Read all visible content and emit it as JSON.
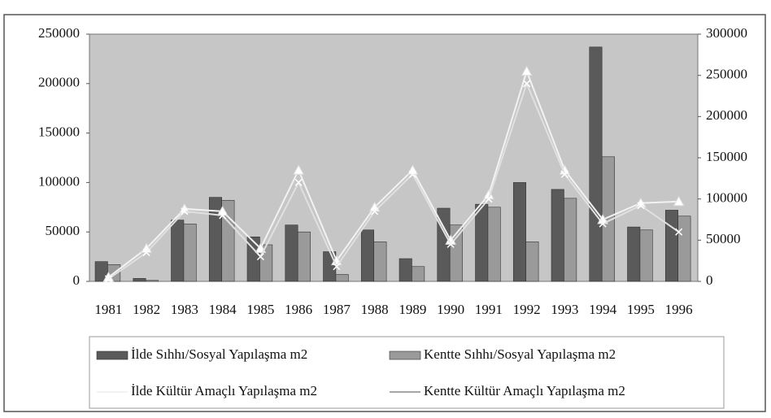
{
  "chart_data": {
    "type": "bar_line",
    "categories": [
      "1981",
      "1982",
      "1983",
      "1984",
      "1985",
      "1986",
      "1987",
      "1988",
      "1989",
      "1990",
      "1991",
      "1992",
      "1993",
      "1994",
      "1995",
      "1996"
    ],
    "series": [
      {
        "name": "İlde Sıhhı/Sosyal Yapılaşma m2",
        "type": "bar",
        "color": "#5a5a5a",
        "values": [
          20000,
          3000,
          62000,
          85000,
          45000,
          57000,
          30000,
          52000,
          23000,
          74000,
          78000,
          100000,
          93000,
          237000,
          55000,
          72000
        ]
      },
      {
        "name": "Kentte Sıhhı/Sosyal Yapılaşma m2",
        "type": "bar",
        "color": "#9a9a9a",
        "values": [
          17000,
          1000,
          58000,
          82000,
          37000,
          50000,
          7000,
          40000,
          15000,
          57000,
          75000,
          40000,
          84000,
          126000,
          52000,
          66000
        ]
      },
      {
        "name": "İlde Kültür Amaçlı Yapılaşma m2",
        "type": "line",
        "axis": "y2",
        "color": "#f2f2f2",
        "values": [
          5000,
          40000,
          88000,
          85000,
          40000,
          135000,
          25000,
          90000,
          135000,
          50000,
          105000,
          255000,
          135000,
          75000,
          95000,
          97000
        ]
      },
      {
        "name": "Kentte Kültür Amaçlı Yapılaşma m2",
        "type": "line",
        "axis": "y2",
        "color": "#e0e0e0",
        "values": [
          3000,
          35000,
          85000,
          80000,
          30000,
          120000,
          18000,
          85000,
          130000,
          45000,
          100000,
          240000,
          130000,
          70000,
          92000,
          60000
        ]
      }
    ],
    "ylim": [
      0,
      250000
    ],
    "yticks": [
      0,
      50000,
      100000,
      150000,
      200000,
      250000
    ],
    "y2lim": [
      0,
      300000
    ],
    "y2ticks": [
      0,
      50000,
      100000,
      150000,
      200000,
      250000,
      300000
    ]
  }
}
